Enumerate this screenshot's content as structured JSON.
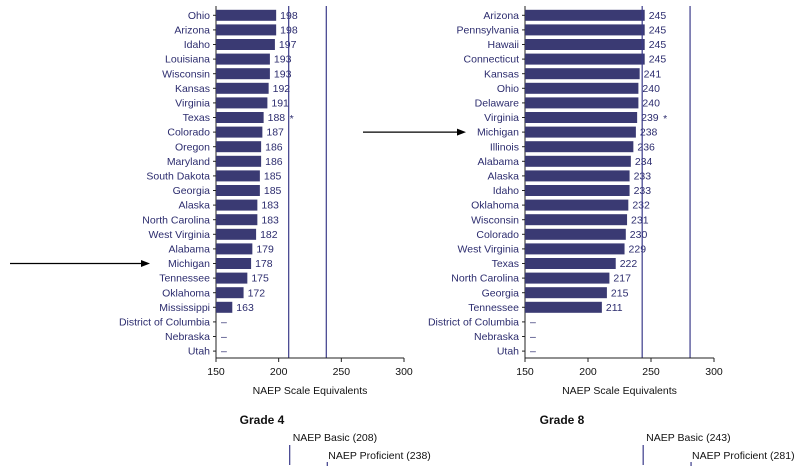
{
  "chart_data": [
    {
      "type": "bar",
      "orientation": "horizontal",
      "title": "Grade 4",
      "xlabel": "NAEP Scale Equivalents",
      "xlim": [
        150,
        300
      ],
      "xticks": [
        "150",
        "200",
        "250",
        "300"
      ],
      "categories": [
        "Ohio",
        "Arizona",
        "Idaho",
        "Louisiana",
        "Wisconsin",
        "Kansas",
        "Virginia",
        "Texas",
        "Colorado",
        "Oregon",
        "Maryland",
        "South Dakota",
        "Georgia",
        "Alaska",
        "North Carolina",
        "West Virginia",
        "Alabama",
        "Michigan",
        "Tennessee",
        "Oklahoma",
        "Mississippi",
        "District of Columbia",
        "Nebraska",
        "Utah"
      ],
      "values": [
        198,
        198,
        197,
        193,
        193,
        192,
        191,
        188,
        187,
        186,
        186,
        185,
        185,
        183,
        183,
        182,
        179,
        178,
        175,
        172,
        163,
        null,
        null,
        null
      ],
      "value_labels": [
        "198",
        "198",
        "197",
        "193",
        "193",
        "192",
        "191",
        "188",
        "187",
        "186",
        "186",
        "185",
        "185",
        "183",
        "183",
        "182",
        "179",
        "178",
        "175",
        "172",
        "163",
        "–",
        "–",
        "–"
      ],
      "value_marks": {
        "Texas": "*"
      },
      "reference_lines": [
        {
          "label": "NAEP Basic (208)",
          "value": 208
        },
        {
          "label": "NAEP Proficient (238)",
          "value": 238
        }
      ],
      "highlight_arrow": "Michigan",
      "bar_color": "#3a3a73",
      "line_color": "#3b3b8a"
    },
    {
      "type": "bar",
      "orientation": "horizontal",
      "title": "Grade 8",
      "xlabel": "NAEP Scale Equivalents",
      "xlim": [
        150,
        300
      ],
      "xticks": [
        "150",
        "200",
        "250",
        "300"
      ],
      "categories": [
        "Arizona",
        "Pennsylvania",
        "Hawaii",
        "Connecticut",
        "Kansas",
        "Ohio",
        "Delaware",
        "Virginia",
        "Michigan",
        "Illinois",
        "Alabama",
        "Alaska",
        "Idaho",
        "Oklahoma",
        "Wisconsin",
        "Colorado",
        "West Virginia",
        "Texas",
        "North Carolina",
        "Georgia",
        "Tennessee",
        "District of Columbia",
        "Nebraska",
        "Utah"
      ],
      "values": [
        245,
        245,
        245,
        245,
        241,
        240,
        240,
        239,
        238,
        236,
        234,
        233,
        233,
        232,
        231,
        230,
        229,
        222,
        217,
        215,
        211,
        null,
        null,
        null
      ],
      "value_labels": [
        "245",
        "245",
        "245",
        "245",
        "241",
        "240",
        "240",
        "239",
        "238",
        "236",
        "234",
        "233",
        "233",
        "232",
        "231",
        "230",
        "229",
        "222",
        "217",
        "215",
        "211",
        "–",
        "–",
        "–"
      ],
      "value_marks": {
        "Virginia": "*"
      },
      "reference_lines": [
        {
          "label": "NAEP Basic (243)",
          "value": 243
        },
        {
          "label": "NAEP Proficient (281)",
          "value": 281
        }
      ],
      "highlight_arrow": "Michigan",
      "bar_color": "#3a3a73",
      "line_color": "#3b3b8a"
    }
  ]
}
